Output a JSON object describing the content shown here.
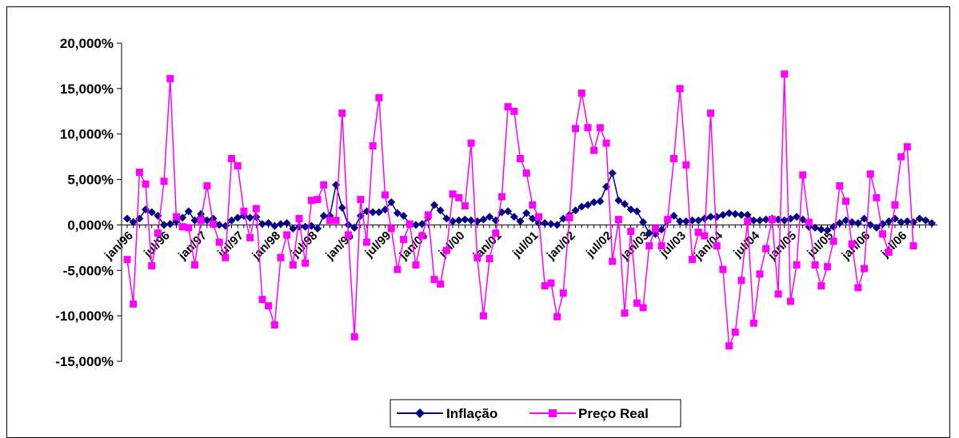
{
  "chart_data": {
    "type": "line",
    "title": "",
    "xlabel": "",
    "ylabel": "",
    "ylim": [
      -15,
      20
    ],
    "y_ticks": [
      20,
      15,
      10,
      5,
      0,
      -5,
      -10,
      -15
    ],
    "y_tick_labels": [
      "20,000%",
      "15,000%",
      "10,000%",
      "5,000%",
      "0,000%",
      "-5,000%",
      "-10,000%",
      "-15,000%"
    ],
    "x_tick_labels": [
      "jan/96",
      "jul/96",
      "jan/97",
      "jul/97",
      "jan/98",
      "jul/98",
      "jan/99",
      "jul/99",
      "jan/00",
      "jul/00",
      "jan/01",
      "jul/01",
      "jan/02",
      "jul/02",
      "jan/03",
      "jul/03",
      "jan/04",
      "jul/04",
      "jan/05",
      "jul/05",
      "jan/06",
      "jul/06"
    ],
    "x_start": "jan/96",
    "x_end": "dec/06",
    "grid": false,
    "legend_position": "bottom-center",
    "series": [
      {
        "name": "Inflação",
        "color": "#000080",
        "marker": "diamond",
        "values": [
          0.7,
          0.3,
          0.7,
          1.7,
          1.4,
          1.0,
          0.0,
          0.1,
          0.4,
          0.8,
          1.5,
          0.5,
          1.2,
          0.5,
          0.7,
          0.0,
          -0.1,
          0.5,
          0.8,
          1.0,
          0.8,
          0.9,
          0.1,
          0.2,
          -0.1,
          0.1,
          0.2,
          -0.4,
          -0.2,
          -0.2,
          -0.1,
          -0.4,
          1.0,
          1.0,
          4.4,
          1.9,
          0.0,
          -0.3,
          1.0,
          1.5,
          1.4,
          1.4,
          1.7,
          2.5,
          1.3,
          1.0,
          0.1,
          0.0,
          0.1,
          0.8,
          2.2,
          1.6,
          0.7,
          0.4,
          0.5,
          0.6,
          0.5,
          0.4,
          0.6,
          0.9,
          0.5,
          1.4,
          1.5,
          0.9,
          0.4,
          1.3,
          0.7,
          0.2,
          0.2,
          0.1,
          0.0,
          0.7,
          1.1,
          1.6,
          2.0,
          2.2,
          2.5,
          2.6,
          4.2,
          5.7,
          2.7,
          2.3,
          1.7,
          1.5,
          0.3,
          -0.9,
          -1.0,
          -0.5,
          0.5,
          1.0,
          0.4,
          0.4,
          0.5,
          0.5,
          0.7,
          0.9,
          0.9,
          1.1,
          1.3,
          1.2,
          1.1,
          1.1,
          0.5,
          0.5,
          0.6,
          0.7,
          0.6,
          0.5,
          0.7,
          0.9,
          0.6,
          -0.2,
          -0.3,
          -0.5,
          -0.6,
          -0.2,
          0.2,
          0.5,
          0.3,
          0.2,
          0.7,
          0.0,
          -0.3,
          0.1,
          0.4,
          0.7,
          0.3,
          0.4,
          0.3,
          0.7,
          0.5,
          0.2
        ]
      },
      {
        "name": "Preço Real",
        "color": "#FF00FF",
        "marker": "square",
        "values": [
          -3.8,
          -8.7,
          5.8,
          4.5,
          -4.5,
          -0.9,
          4.8,
          16.1,
          0.9,
          -0.2,
          -0.3,
          -4.4,
          0.5,
          4.3,
          0.1,
          -1.9,
          -3.6,
          7.3,
          6.5,
          1.5,
          -1.4,
          1.8,
          -8.2,
          -8.9,
          -11.0,
          -3.6,
          -1.1,
          -4.4,
          0.7,
          -4.2,
          2.7,
          2.8,
          4.4,
          0.5,
          0.5,
          12.3,
          -1.1,
          -12.3,
          2.8,
          -1.9,
          8.7,
          14.0,
          3.3,
          -0.4,
          -4.9,
          -1.6,
          0.1,
          -4.4,
          -1.2,
          1.1,
          -6.0,
          -6.5,
          -2.8,
          3.4,
          3.0,
          2.1,
          9.0,
          -3.6,
          -10.0,
          -3.7,
          -0.9,
          3.1,
          13.0,
          12.5,
          7.3,
          5.7,
          2.2,
          0.9,
          -6.7,
          -6.4,
          -10.1,
          -7.5,
          0.8,
          10.6,
          14.5,
          10.7,
          8.2,
          10.7,
          9.0,
          -4.0,
          0.6,
          -9.7,
          -0.7,
          -8.6,
          -9.1,
          -2.3,
          -0.4,
          -2.3,
          0.6,
          7.3,
          15.0,
          6.6,
          -3.8,
          -0.8,
          -1.2,
          12.3,
          -2.3,
          -4.9,
          -13.3,
          -11.8,
          -6.1,
          0.4,
          -10.8,
          -5.4,
          -2.6,
          0.6,
          -7.6,
          16.6,
          -8.4,
          -4.4,
          5.5,
          0.3,
          -4.4,
          -6.7,
          -4.6,
          -1.8,
          4.3,
          2.6,
          -2.1,
          -6.9,
          -4.8,
          5.6,
          3.0,
          -1.0,
          -3.0,
          2.2,
          7.5,
          8.6,
          -2.3
        ]
      }
    ]
  }
}
